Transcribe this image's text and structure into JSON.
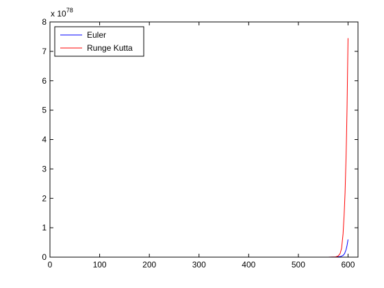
{
  "chart_data": {
    "type": "line",
    "title": "",
    "xlabel": "",
    "ylabel": "",
    "xlim": [
      0,
      620
    ],
    "ylim": [
      0,
      8
    ],
    "x_ticks": [
      "0",
      "100",
      "200",
      "300",
      "400",
      "500",
      "600"
    ],
    "y_ticks": [
      "0",
      "1",
      "2",
      "3",
      "4",
      "5",
      "6",
      "7",
      "8"
    ],
    "y_multiplier": {
      "base": "x 10",
      "exponent": "78"
    },
    "grid": false,
    "legend_position": "top-left",
    "series": [
      {
        "name": "Euler",
        "color": "#0000ff",
        "x": [
          470,
          500,
          530,
          560,
          575,
          585,
          590,
          593,
          596,
          598,
          600
        ],
        "y": [
          0,
          0,
          0,
          0,
          0.005,
          0.02,
          0.06,
          0.12,
          0.25,
          0.4,
          0.6
        ]
      },
      {
        "name": "Runge Kutta",
        "color": "#ff0000",
        "x": [
          470,
          500,
          530,
          560,
          575,
          580,
          584,
          587,
          590,
          592,
          594,
          596,
          597,
          598,
          599,
          600
        ],
        "y": [
          0,
          0,
          0,
          0,
          0.01,
          0.04,
          0.12,
          0.3,
          0.8,
          1.4,
          2.2,
          3.4,
          4.2,
          5.1,
          6.3,
          7.45
        ]
      }
    ]
  }
}
